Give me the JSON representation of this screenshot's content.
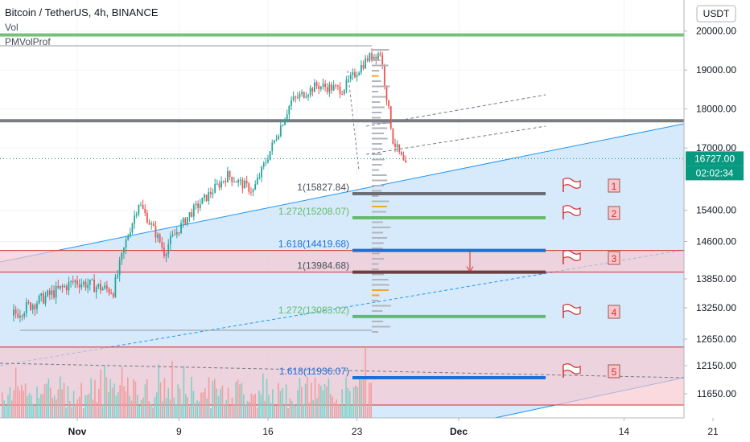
{
  "header": {
    "symbol": "Bitcoin / TetherUS, 4h, BINANCE",
    "indicators": [
      "Vol",
      "PMVolProf"
    ]
  },
  "currency_button": "USDT",
  "last_price_label": "16727.00",
  "countdown_label": "02:02:34",
  "colors": {
    "up": "#26a69a",
    "down": "#ef5350",
    "channel_fill": "#d2e8fb",
    "channel_line": "#2196f3",
    "zone_fill": "#f7c6cc",
    "zone_line": "#d32f2f",
    "level_gray": "#787b86",
    "level_green": "#66bb6a",
    "level_blue": "#1e6fd9",
    "level_brown": "#7a4a4a",
    "price_tag": "#089981"
  },
  "chart_data": {
    "type": "candlestick",
    "x_tick_labels": [
      "Nov",
      "9",
      "16",
      "23",
      "Dec",
      "14",
      "21"
    ],
    "y_tick_labels": [
      "20000.00",
      "19000.00",
      "18000.00",
      "17000.00",
      "15400.00",
      "14600.00",
      "13850.00",
      "13250.00",
      "12650.00",
      "12150.00",
      "11650.00"
    ],
    "y_ticks": [
      20000,
      19000,
      18000,
      17000,
      15400,
      14600,
      13850,
      13250,
      12650,
      12150,
      11650
    ],
    "last_price": 16727,
    "horizontal_levels": [
      19900,
      17700
    ],
    "key_points": [
      {
        "date": "Oct 27",
        "price": 13100
      },
      {
        "date": "Nov 1",
        "price": 13800
      },
      {
        "date": "Nov 4",
        "price": 13600
      },
      {
        "date": "Nov 6",
        "price": 15600
      },
      {
        "date": "Nov 8",
        "price": 14400
      },
      {
        "date": "Nov 10",
        "price": 15300
      },
      {
        "date": "Nov 13",
        "price": 16300
      },
      {
        "date": "Nov 15",
        "price": 15900
      },
      {
        "date": "Nov 18",
        "price": 18200
      },
      {
        "date": "Nov 20",
        "price": 18600
      },
      {
        "date": "Nov 22",
        "price": 18500
      },
      {
        "date": "Nov 24",
        "price": 19300
      },
      {
        "date": "Nov 25",
        "price": 19450
      },
      {
        "date": "Nov 26",
        "price": 17200
      },
      {
        "date": "Nov 27",
        "price": 16500
      }
    ],
    "fib_levels": [
      {
        "label": "1(15827.84)",
        "ratio": "1",
        "price": 15827.84,
        "color": "gray"
      },
      {
        "label": "1.272(15208.07)",
        "ratio": "1.272",
        "price": 15208.07,
        "color": "green"
      },
      {
        "label": "1.618(14419.68)",
        "ratio": "1.618",
        "price": 14419.68,
        "color": "blue"
      },
      {
        "label": "1(13984.68)",
        "ratio": "1",
        "price": 13984.68,
        "color": "brown"
      },
      {
        "label": "1.272(13083.02)",
        "ratio": "1.272",
        "price": 13083.02,
        "color": "green"
      },
      {
        "label": "1.618(11936.07)",
        "ratio": "1.618",
        "price": 11936.07,
        "color": "blue"
      }
    ],
    "targets": [
      {
        "label": "1",
        "price": 15827.84
      },
      {
        "label": "2",
        "price": 15208.07
      },
      {
        "label": "3",
        "price": 14300
      },
      {
        "label": "4",
        "price": 13083.02
      },
      {
        "label": "5",
        "price": 11936.07
      }
    ],
    "zones": [
      {
        "from": 13984.68,
        "to": 14419.68
      },
      {
        "from": 11450,
        "to": 12500
      }
    ]
  }
}
